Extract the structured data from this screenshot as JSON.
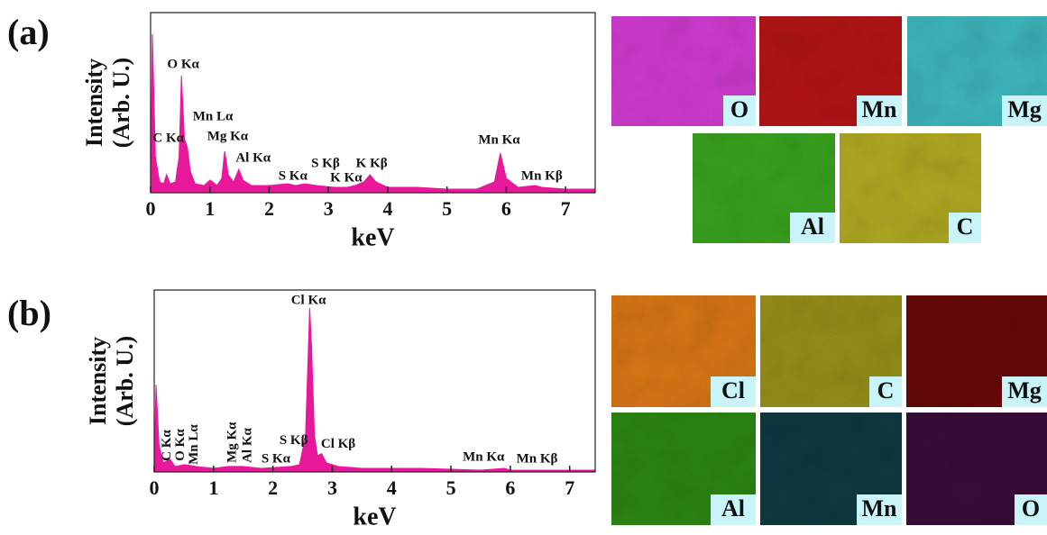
{
  "chart_data": [
    {
      "type": "area",
      "panel": "(a)",
      "color": "#e8189a",
      "xlabel": "keV",
      "ylabel": [
        "Intensity",
        "(Arb. U.)"
      ],
      "x": [
        0,
        0.03,
        0.08,
        0.15,
        0.22,
        0.27,
        0.33,
        0.42,
        0.48,
        0.52,
        0.57,
        0.62,
        0.67,
        0.75,
        0.9,
        1.0,
        1.05,
        1.12,
        1.2,
        1.25,
        1.31,
        1.4,
        1.49,
        1.56,
        1.7,
        2.0,
        2.31,
        2.45,
        2.6,
        2.8,
        3.1,
        3.31,
        3.45,
        3.6,
        3.7,
        3.8,
        4.0,
        4.5,
        5.0,
        5.5,
        5.8,
        5.9,
        6.0,
        6.2,
        6.49,
        6.6,
        7.0,
        7.5
      ],
      "values": [
        3,
        88,
        20,
        6,
        5,
        10,
        5,
        6,
        20,
        65,
        30,
        25,
        12,
        5,
        4,
        7,
        6,
        4,
        8,
        23,
        10,
        6,
        13,
        7,
        4,
        4,
        5,
        4,
        5,
        4,
        3,
        3,
        4,
        6,
        10,
        6,
        3,
        3,
        2,
        2,
        6,
        22,
        8,
        3,
        4,
        3,
        2,
        2
      ],
      "xlim": [
        0,
        7.5
      ],
      "ylim": [
        0,
        100
      ],
      "xticks": [
        0,
        1,
        2,
        3,
        4,
        5,
        6,
        7
      ],
      "annotations": [
        {
          "text": "O Kα",
          "x": 0.55,
          "y": 71
        },
        {
          "text": "C Kα",
          "x": 0.3,
          "y": 30
        },
        {
          "text": "Mn Lα",
          "x": 1.05,
          "y": 42
        },
        {
          "text": "Mg Kα",
          "x": 1.3,
          "y": 31
        },
        {
          "text": "Al Kα",
          "x": 1.73,
          "y": 19
        },
        {
          "text": "S Kα",
          "x": 2.4,
          "y": 9
        },
        {
          "text": "S Kβ",
          "x": 2.95,
          "y": 16
        },
        {
          "text": "K Kα",
          "x": 3.3,
          "y": 8
        },
        {
          "text": "K Kβ",
          "x": 3.73,
          "y": 16
        },
        {
          "text": "Mn Kα",
          "x": 5.88,
          "y": 29
        },
        {
          "text": "Mn Kβ",
          "x": 6.6,
          "y": 9
        }
      ]
    },
    {
      "type": "area",
      "panel": "(b)",
      "color": "#e8189a",
      "xlabel": "keV",
      "ylabel": [
        "Intensity",
        "(Arb. U.)"
      ],
      "x": [
        0,
        0.03,
        0.08,
        0.15,
        0.27,
        0.35,
        0.52,
        0.7,
        1.0,
        1.25,
        1.49,
        1.8,
        2.31,
        2.45,
        2.55,
        2.6,
        2.62,
        2.65,
        2.7,
        2.75,
        2.82,
        2.9,
        3.1,
        3.5,
        4.5,
        5.5,
        5.9,
        6.0,
        6.2,
        7.0,
        7.43
      ],
      "values": [
        2,
        48,
        15,
        5,
        7,
        3,
        4,
        3,
        2,
        3,
        3,
        2,
        3,
        4,
        20,
        70,
        90,
        70,
        20,
        9,
        10,
        5,
        3,
        2,
        2,
        1,
        2,
        1,
        1,
        1,
        1
      ],
      "xlim": [
        0,
        7.43
      ],
      "ylim": [
        0,
        100
      ],
      "xticks": [
        0,
        1,
        2,
        3,
        4,
        5,
        6,
        7
      ],
      "annotations": [
        {
          "text": "Cl Kα",
          "x": 2.6,
          "y": 94
        },
        {
          "text": "Cl Kβ",
          "x": 3.1,
          "y": 15
        },
        {
          "text": "S Kβ",
          "x": 2.35,
          "y": 17
        },
        {
          "text": "S Kα",
          "x": 2.05,
          "y": 7
        },
        {
          "text": "C Kα",
          "x": 0.22,
          "y": 6,
          "vertical": true
        },
        {
          "text": "O Kα",
          "x": 0.45,
          "y": 6,
          "vertical": true
        },
        {
          "text": "Mn Lα",
          "x": 0.68,
          "y": 4,
          "vertical": true
        },
        {
          "text": "Mg Kα",
          "x": 1.32,
          "y": 5,
          "vertical": true
        },
        {
          "text": "Al Kα",
          "x": 1.58,
          "y": 5,
          "vertical": true
        },
        {
          "text": "Mn Kα",
          "x": 5.55,
          "y": 8
        },
        {
          "text": "Mn Kβ",
          "x": 6.45,
          "y": 7
        }
      ]
    }
  ],
  "element_maps": [
    {
      "tiles": [
        {
          "label": "O",
          "color": "#d63cd6"
        },
        {
          "label": "Mn",
          "color": "#b81414"
        },
        {
          "label": "Mg",
          "color": "#40bcc4"
        },
        {
          "label": "Al",
          "color": "#3aa81e"
        },
        {
          "label": "C",
          "color": "#b6ae22"
        }
      ]
    },
    {
      "tiles": [
        {
          "label": "Cl",
          "color": "#e07a14"
        },
        {
          "label": "C",
          "color": "#9a9418"
        },
        {
          "label": "Mg",
          "color": "#6a0808"
        },
        {
          "label": "Al",
          "color": "#2c8a12"
        },
        {
          "label": "Mn",
          "color": "#0e3a42"
        },
        {
          "label": "O",
          "color": "#3a0c3a"
        }
      ]
    }
  ]
}
